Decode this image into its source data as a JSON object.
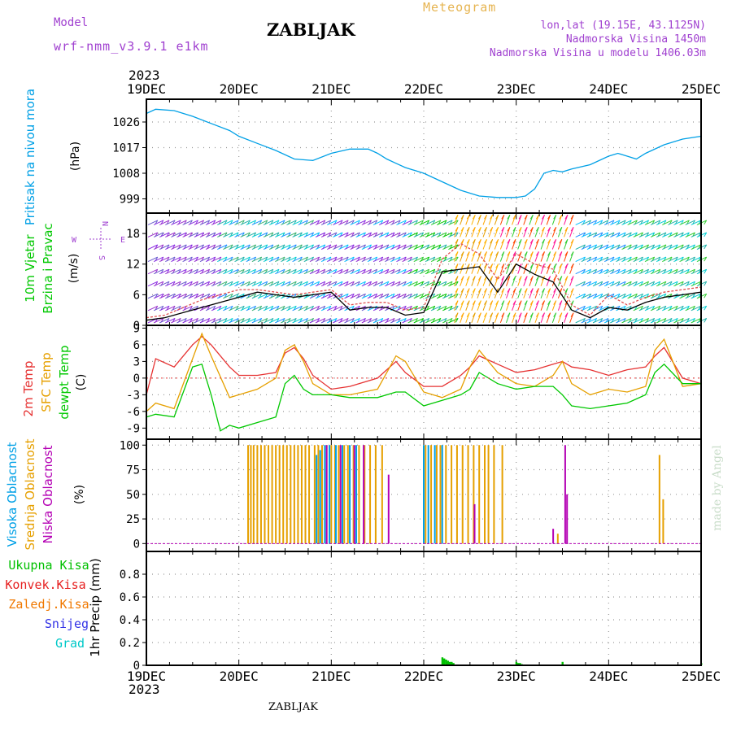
{
  "header": {
    "model_label": "Model",
    "model_name": "wrf-nmm_v3.9.1  e1km",
    "place": "ZABLJAK",
    "product": "Meteogram",
    "coords": "lon,lat (19.15E, 43.1125N)",
    "altitude": "Nadmorska Visina 1450m",
    "model_altitude": "Nadmorska Visina u modelu 1406.03m",
    "year_top": "2023",
    "year_bottom": "2023",
    "footer_place": "ZABLJAK",
    "signature": "made by Angel"
  },
  "colors": {
    "pressure": "#00a0e6",
    "wind_speed": "#000000",
    "wind_gust": "#e05050",
    "t2m": "#e63232",
    "tsfc": "#e6a000",
    "dewpt": "#00c800",
    "cloud_high": "#00a0e6",
    "cloud_mid": "#e6a000",
    "cloud_low": "#b400b4",
    "precip_total": "#00c000",
    "precip_conv": "#e62020",
    "precip_frz": "#f07800",
    "snow": "#3232e6",
    "hail": "#00c8c8",
    "label_purple": "#a040d0",
    "label_gold": "#e6b450"
  },
  "chart_data": [
    {
      "type": "line",
      "title": "Pritisak na nivou mora",
      "ylabel": "(hPa)",
      "ylim": [
        994,
        1034
      ],
      "yticks": [
        999,
        1008,
        1017,
        1026
      ],
      "series": [
        {
          "name": "Pritisak",
          "x": [
            0,
            0.1,
            0.3,
            0.5,
            0.7,
            0.9,
            1,
            1.2,
            1.4,
            1.6,
            1.8,
            2,
            2.2,
            2.4,
            2.5,
            2.6,
            2.7,
            2.8,
            3,
            3.2,
            3.4,
            3.6,
            3.8,
            4,
            4.1,
            4.2,
            4.3,
            4.4,
            4.5,
            4.6,
            4.8,
            5,
            5.1,
            5.2,
            5.3,
            5.4,
            5.6,
            5.8,
            6
          ],
          "values": [
            1029,
            1030.5,
            1030,
            1028,
            1025.5,
            1023,
            1021,
            1018.5,
            1016,
            1013,
            1012.5,
            1015,
            1016.5,
            1016.5,
            1015,
            1013,
            1011.5,
            1010,
            1008,
            1005,
            1002,
            1000,
            999.5,
            999.5,
            1000,
            1002.5,
            1008,
            1009,
            1008.5,
            1009.5,
            1011,
            1014,
            1015,
            1014,
            1013,
            1015,
            1018,
            1020,
            1021
          ]
        }
      ],
      "grid": true
    },
    {
      "type": "line",
      "title": "10m Vjetar Brzina i Pravac",
      "ylabel": "(m/s)",
      "ylim": [
        0,
        22
      ],
      "yticks": [
        0,
        6,
        12,
        18
      ],
      "wind_compass": {
        "n": "N",
        "s": "S",
        "e": "E",
        "w": "W"
      },
      "series": [
        {
          "name": "Brzina",
          "x": [
            0,
            0.2,
            0.4,
            0.6,
            0.8,
            1,
            1.2,
            1.4,
            1.6,
            1.8,
            2,
            2.2,
            2.4,
            2.6,
            2.8,
            3,
            3.2,
            3.4,
            3.6,
            3.8,
            4,
            4.2,
            4.4,
            4.6,
            4.8,
            5,
            5.2,
            5.4,
            5.6,
            5.8,
            6
          ],
          "values": [
            1,
            1.5,
            2.5,
            3.5,
            4.5,
            5.5,
            6.5,
            6,
            5.5,
            6,
            6.5,
            3,
            3.5,
            3.5,
            2,
            2.5,
            10.5,
            11,
            11.5,
            6.5,
            12,
            10,
            8.5,
            3,
            1.5,
            3.5,
            3,
            4.5,
            5.5,
            6,
            6.5
          ]
        },
        {
          "name": "Udari",
          "x": [
            0,
            0.2,
            0.4,
            0.6,
            0.8,
            1,
            1.2,
            1.4,
            1.6,
            1.8,
            2,
            2.2,
            2.4,
            2.6,
            2.8,
            3,
            3.2,
            3.4,
            3.6,
            3.8,
            4,
            4.2,
            4.4,
            4.6,
            4.8,
            5,
            5.2,
            5.4,
            5.6,
            5.8,
            6
          ],
          "values": [
            1.5,
            2,
            3.5,
            5,
            6,
            7,
            7,
            6.5,
            6,
            6.5,
            7,
            4,
            4.5,
            4.5,
            3,
            3.5,
            13,
            16,
            14,
            9,
            14,
            12,
            11,
            4,
            2,
            6,
            4,
            5.5,
            6.5,
            7,
            7.5
          ]
        }
      ],
      "grid": true
    },
    {
      "type": "line",
      "title": "2m Temp / SFC Temp / dewpt Temp",
      "ylabel": "(C)",
      "ylim": [
        -11,
        9.5
      ],
      "yticks": [
        -9,
        -6,
        -3,
        0,
        3,
        6,
        9
      ],
      "series": [
        {
          "name": "2m Temp",
          "x": [
            0,
            0.1,
            0.3,
            0.5,
            0.6,
            0.7,
            0.9,
            1,
            1.2,
            1.4,
            1.5,
            1.6,
            1.7,
            1.8,
            2,
            2.2,
            2.5,
            2.7,
            2.8,
            3,
            3.2,
            3.4,
            3.5,
            3.6,
            3.8,
            4,
            4.2,
            4.4,
            4.5,
            4.6,
            4.8,
            5,
            5.2,
            5.4,
            5.5,
            5.6,
            5.8,
            6
          ],
          "values": [
            -3,
            3.5,
            2,
            6,
            7.5,
            6,
            2,
            0.5,
            0.5,
            1,
            4.5,
            5.5,
            3.5,
            0.5,
            -2,
            -1.5,
            0,
            3,
            1,
            -1.5,
            -1.5,
            0.5,
            2,
            4,
            2.5,
            1,
            1.5,
            2.5,
            3,
            2,
            1.5,
            0.5,
            1.5,
            2,
            4,
            5.5,
            0,
            -1
          ]
        },
        {
          "name": "SFC Temp",
          "x": [
            0,
            0.1,
            0.3,
            0.5,
            0.6,
            0.7,
            0.9,
            1,
            1.2,
            1.4,
            1.5,
            1.6,
            1.7,
            1.8,
            2,
            2.2,
            2.5,
            2.7,
            2.8,
            3,
            3.2,
            3.4,
            3.5,
            3.6,
            3.8,
            4,
            4.2,
            4.4,
            4.5,
            4.6,
            4.8,
            5,
            5.2,
            5.4,
            5.5,
            5.6,
            5.8,
            6
          ],
          "values": [
            -6,
            -4.5,
            -5.5,
            3.5,
            8,
            4,
            -3.5,
            -3,
            -2,
            0,
            5,
            6,
            3,
            -1,
            -3,
            -3,
            -2,
            4,
            3,
            -2.5,
            -3.5,
            -2,
            2,
            5,
            1,
            -1,
            -1.5,
            0.5,
            3,
            -1,
            -3,
            -2,
            -2.5,
            -1.5,
            5,
            7,
            -1.5,
            -1
          ]
        },
        {
          "name": "dewpt Temp",
          "x": [
            0,
            0.1,
            0.3,
            0.5,
            0.6,
            0.7,
            0.8,
            0.9,
            1,
            1.2,
            1.4,
            1.5,
            1.6,
            1.7,
            1.8,
            2,
            2.2,
            2.5,
            2.7,
            2.8,
            3,
            3.2,
            3.4,
            3.5,
            3.6,
            3.8,
            4,
            4.2,
            4.4,
            4.5,
            4.6,
            4.8,
            5,
            5.2,
            5.4,
            5.5,
            5.6,
            5.8,
            6
          ],
          "values": [
            -7,
            -6.5,
            -7,
            2,
            2.5,
            -3,
            -9.5,
            -8.5,
            -9,
            -8,
            -7,
            -1,
            0.5,
            -2,
            -3,
            -3,
            -3.5,
            -3.5,
            -2.5,
            -2.5,
            -5,
            -4,
            -3,
            -2,
            1,
            -1,
            -2,
            -1.5,
            -1.5,
            -3,
            -5,
            -5.5,
            -5,
            -4.5,
            -3,
            1,
            2.5,
            -1,
            -1
          ]
        }
      ],
      "grid": true
    },
    {
      "type": "bar",
      "title": "Visoka Oblacnost / Srednja Oblacnost / Niska Oblacnost",
      "ylabel": "(%)",
      "ylim": [
        -8,
        106
      ],
      "yticks": [
        0,
        25,
        50,
        75,
        100
      ],
      "series": [
        {
          "name": "Visoka Oblacnost",
          "x": [
            1.84,
            1.88,
            1.93,
            1.98,
            2.05,
            2.12,
            2.2,
            2.27,
            3.0,
            3.05,
            3.12,
            3.2
          ],
          "values": [
            90,
            95,
            100,
            100,
            100,
            100,
            100,
            100,
            100,
            100,
            100,
            100
          ]
        },
        {
          "name": "Srednja Oblacnost",
          "x": [
            1.1,
            1.13,
            1.16,
            1.2,
            1.24,
            1.28,
            1.32,
            1.36,
            1.4,
            1.44,
            1.48,
            1.52,
            1.56,
            1.6,
            1.64,
            1.68,
            1.72,
            1.76,
            1.82,
            1.86,
            1.9,
            1.95,
            2.0,
            2.04,
            2.08,
            2.14,
            2.18,
            2.24,
            2.3,
            2.36,
            2.42,
            2.48,
            2.55,
            3.02,
            3.08,
            3.14,
            3.18,
            3.24,
            3.3,
            3.36,
            3.42,
            3.48,
            3.54,
            3.6,
            3.66,
            3.7,
            3.76,
            3.85,
            4.45,
            5.55,
            5.59
          ],
          "values": [
            100,
            100,
            100,
            100,
            100,
            100,
            100,
            100,
            100,
            100,
            100,
            100,
            100,
            100,
            100,
            100,
            100,
            100,
            100,
            100,
            100,
            100,
            100,
            100,
            100,
            100,
            100,
            100,
            100,
            100,
            100,
            100,
            100,
            100,
            100,
            100,
            100,
            100,
            100,
            100,
            100,
            100,
            100,
            100,
            100,
            100,
            100,
            100,
            10,
            90,
            45
          ]
        },
        {
          "name": "Niska Oblacnost",
          "x": [
            1.95,
            2.1,
            2.25,
            2.35,
            2.62,
            3.55,
            4.4,
            4.53,
            4.55
          ],
          "values": [
            100,
            100,
            100,
            100,
            70,
            40,
            15,
            100,
            50
          ]
        }
      ],
      "grid": true
    },
    {
      "type": "bar",
      "title": "Ukupna Kisa / Konvek.Kisa / Zaledj.Kisa / Snijeg / Grad",
      "ylabel": "1hr Precip (mm)",
      "ylim": [
        0,
        1.0
      ],
      "yticks": [
        0,
        0.2,
        0.4,
        0.6,
        0.8
      ],
      "series": [
        {
          "name": "Ukupna Kisa",
          "x": [
            3.2,
            3.22,
            3.24,
            3.26,
            3.28,
            3.3,
            3.32,
            4.0,
            4.02,
            4.04,
            4.06,
            4.5,
            6.0
          ],
          "values": [
            0.07,
            0.06,
            0.05,
            0.04,
            0.03,
            0.03,
            0.02,
            0.03,
            0.02,
            0.02,
            0.01,
            0.03,
            0.02
          ]
        },
        {
          "name": "Konvek.Kisa",
          "x": [],
          "values": []
        },
        {
          "name": "Zaledj.Kisa",
          "x": [],
          "values": []
        },
        {
          "name": "Snijeg",
          "x": [],
          "values": []
        },
        {
          "name": "Grad",
          "x": [],
          "values": []
        }
      ],
      "grid": true
    }
  ],
  "x_axis": {
    "categories": [
      "19DEC",
      "20DEC",
      "21DEC",
      "22DEC",
      "23DEC",
      "24DEC",
      "25DEC"
    ],
    "range": [
      0,
      6
    ],
    "unit": "days"
  }
}
